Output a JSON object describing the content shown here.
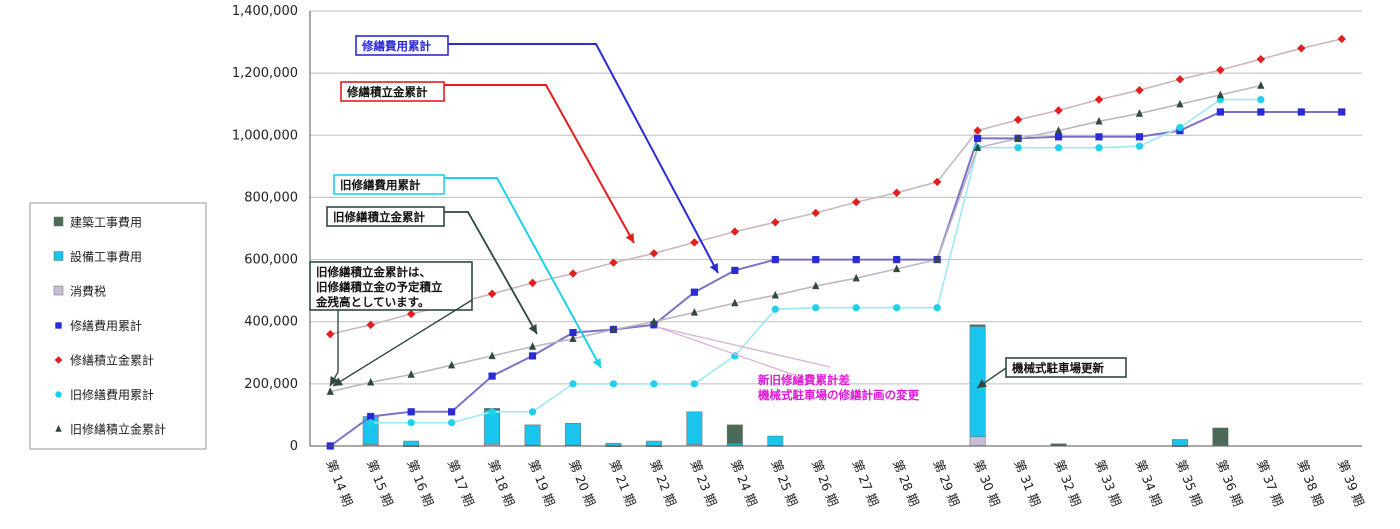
{
  "chart_data": {
    "type": "bar",
    "title": "",
    "xlabel": "",
    "ylabel": "",
    "ylim": [
      0,
      1400000
    ],
    "yticks": [
      "0",
      "200,000",
      "400,000",
      "600,000",
      "800,000",
      "1,000,000",
      "1,200,000",
      "1,400,000"
    ],
    "ytick_values": [
      0,
      200000,
      400000,
      600000,
      800000,
      1000000,
      1200000,
      1400000
    ],
    "categories": [
      "第 14 期",
      "第 15 期",
      "第 16 期",
      "第 17 期",
      "第 18 期",
      "第 19 期",
      "第 20 期",
      "第 21 期",
      "第 22 期",
      "第 23 期",
      "第 24 期",
      "第 25 期",
      "第 26 期",
      "第 27 期",
      "第 28 期",
      "第 29 期",
      "第 30 期",
      "第 31 期",
      "第 32 期",
      "第 33 期",
      "第 34 期",
      "第 35 期",
      "第 36 期",
      "第 37 期",
      "第 38 期",
      "第 39 期"
    ],
    "grid": true,
    "legend_position": "left",
    "bar_series": [
      {
        "name": "建築工事費用",
        "color": "#4a6b58",
        "values": [
          0,
          0,
          0,
          0,
          5000,
          0,
          0,
          0,
          0,
          0,
          60000,
          0,
          0,
          0,
          0,
          0,
          5000,
          0,
          7000,
          0,
          0,
          0,
          55000,
          0,
          0,
          0
        ]
      },
      {
        "name": "設備工事費用",
        "color": "#19c4ee",
        "values": [
          0,
          90000,
          15000,
          0,
          110000,
          65000,
          70000,
          8000,
          15000,
          105000,
          5000,
          30000,
          0,
          0,
          0,
          0,
          355000,
          0,
          0,
          0,
          0,
          20000,
          0,
          0,
          0,
          0
        ]
      },
      {
        "name": "消費税",
        "color": "#c8bcd6",
        "values": [
          0,
          5000,
          1000,
          0,
          6000,
          3000,
          3000,
          1000,
          1000,
          5000,
          3000,
          2000,
          0,
          0,
          0,
          0,
          30000,
          0,
          0,
          0,
          0,
          1000,
          3000,
          0,
          0,
          0
        ]
      }
    ],
    "line_series": [
      {
        "name": "修繕費用累計",
        "color": "#2b2bd6",
        "marker": "square",
        "values": [
          0,
          95000,
          110000,
          110000,
          225000,
          290000,
          365000,
          375000,
          390000,
          495000,
          565000,
          600000,
          600000,
          600000,
          600000,
          600000,
          990000,
          990000,
          995000,
          995000,
          995000,
          1015000,
          1075000,
          1075000,
          1075000,
          1075000
        ]
      },
      {
        "name": "修繕積立金累計",
        "color": "#e21e1e",
        "marker": "diamond",
        "values": [
          360000,
          390000,
          425000,
          455000,
          490000,
          525000,
          555000,
          590000,
          620000,
          655000,
          690000,
          720000,
          750000,
          785000,
          815000,
          850000,
          1015000,
          1050000,
          1080000,
          1115000,
          1145000,
          1180000,
          1210000,
          1245000,
          1280000,
          1310000
        ]
      },
      {
        "name": "旧修繕費用累計",
        "color": "#1fd0ea",
        "marker": "circle",
        "values": [
          null,
          75000,
          75000,
          75000,
          110000,
          110000,
          200000,
          200000,
          200000,
          200000,
          290000,
          440000,
          445000,
          445000,
          445000,
          445000,
          960000,
          960000,
          960000,
          960000,
          965000,
          1025000,
          1115000,
          1115000,
          null,
          null
        ]
      },
      {
        "name": "旧修繕積立金累計",
        "color": "#2f4a3a",
        "marker": "triangle",
        "values": [
          175000,
          205000,
          230000,
          260000,
          290000,
          320000,
          345000,
          375000,
          400000,
          430000,
          460000,
          485000,
          515000,
          540000,
          570000,
          600000,
          960000,
          990000,
          1015000,
          1045000,
          1070000,
          1100000,
          1130000,
          1160000,
          null,
          null
        ]
      }
    ],
    "legend": [
      {
        "label": "建築工事費用",
        "type": "bar",
        "color": "#4a6b58"
      },
      {
        "label": "設備工事費用",
        "type": "bar",
        "color": "#19c4ee"
      },
      {
        "label": "消費税",
        "type": "bar",
        "color": "#c8bcd6"
      },
      {
        "label": "修繕費用累計",
        "type": "square",
        "color": "#2b2bd6"
      },
      {
        "label": "修繕積立金累計",
        "type": "diamond",
        "color": "#e21e1e"
      },
      {
        "label": "旧修繕費用累計",
        "type": "circle",
        "color": "#1fd0ea"
      },
      {
        "label": "旧修繕積立金累計",
        "type": "triangle",
        "color": "#2f4a3a"
      }
    ],
    "annotations": [
      {
        "lines": [
          "修繕費用累計"
        ],
        "color": "#2b2bd6",
        "border": "#2b2bd6"
      },
      {
        "lines": [
          "修繕積立金累計"
        ],
        "color": "#111111",
        "border": "#e21e1e"
      },
      {
        "lines": [
          "旧修繕費用累計"
        ],
        "color": "#111111",
        "border": "#1fd0ea"
      },
      {
        "lines": [
          "旧修繕積立金累計"
        ],
        "color": "#111111",
        "border": "#2f4a3a"
      },
      {
        "lines": [
          "旧修繕積立金累計は、",
          "旧修繕積立金の予定積立",
          "金残高としています。"
        ],
        "color": "#111111",
        "border": "#2f4a3a"
      },
      {
        "lines": [
          "新旧修繕費累計差",
          "機械式駐車場の修繕計画の変更"
        ],
        "color": "#e01ad6",
        "border": "none"
      },
      {
        "lines": [
          "機械式駐車場更新"
        ],
        "color": "#111111",
        "border": "#2f4a3a"
      }
    ]
  }
}
